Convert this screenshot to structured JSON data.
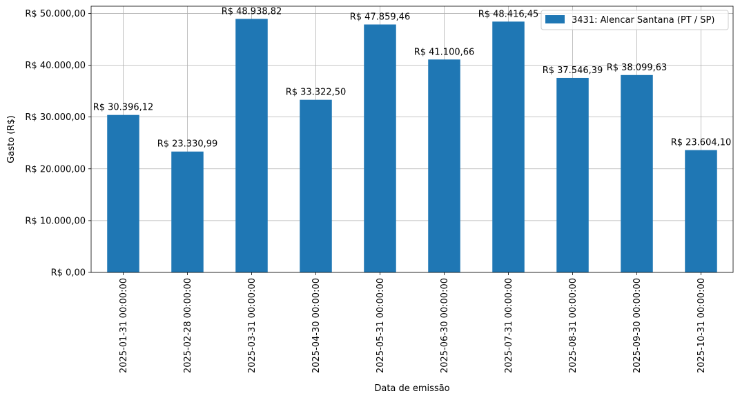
{
  "chart_data": {
    "type": "bar",
    "xlabel": "Data de emissão",
    "ylabel": "Gasto (R$)",
    "categories": [
      "2025-01-31 00:00:00",
      "2025-02-28 00:00:00",
      "2025-03-31 00:00:00",
      "2025-04-30 00:00:00",
      "2025-05-31 00:00:00",
      "2025-06-30 00:00:00",
      "2025-07-31 00:00:00",
      "2025-08-31 00:00:00",
      "2025-09-30 00:00:00",
      "2025-10-31 00:00:00"
    ],
    "series": [
      {
        "name": "3431: Alencar Santana (PT / SP)",
        "color": "#1f77b4",
        "values": [
          30396.12,
          23330.99,
          48938.82,
          33322.5,
          47859.46,
          41100.66,
          48416.45,
          37546.39,
          38099.63,
          23604.1
        ],
        "data_labels": [
          "R$ 30.396,12",
          "R$ 23.330,99",
          "R$ 48.938,82",
          "R$ 33.322,50",
          "R$ 47.859,46",
          "R$ 41.100,66",
          "R$ 48.416,45",
          "R$ 37.546,39",
          "R$ 38.099,63",
          "R$ 23.604,10"
        ]
      }
    ],
    "ylim": [
      0,
      51386.76
    ],
    "yticks": [
      0,
      10000,
      20000,
      30000,
      40000,
      50000
    ],
    "ytick_labels": [
      "R$ 0,00",
      "R$ 10.000,00",
      "R$ 20.000,00",
      "R$ 30.000,00",
      "R$ 40.000,00",
      "R$ 50.000,00"
    ],
    "grid": true,
    "legend_position": "top-right"
  }
}
